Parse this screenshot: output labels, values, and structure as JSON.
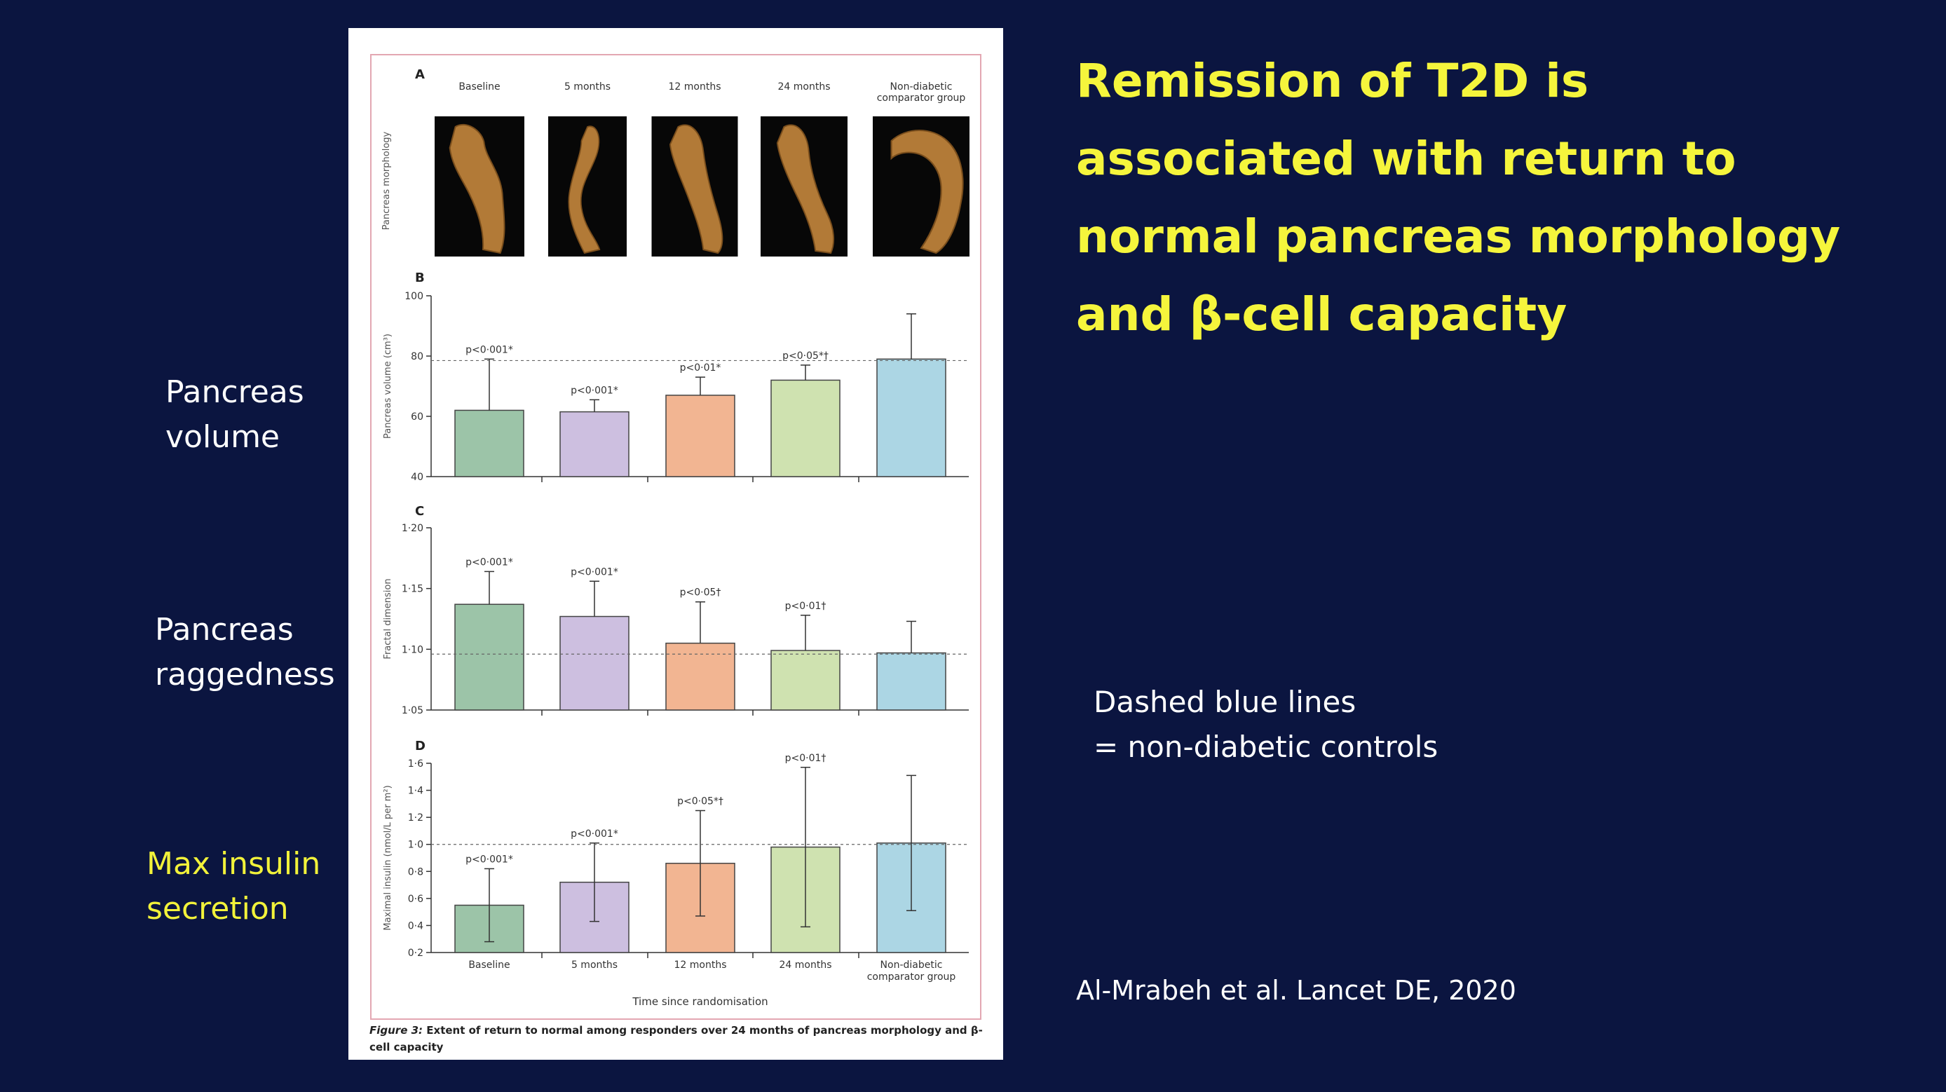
{
  "slide": {
    "title_lines": [
      "Remission of T2D is",
      "associated with return to",
      "normal pancreas morphology",
      "and β-cell capacity"
    ],
    "side_labels": {
      "volume": [
        "Pancreas",
        "volume"
      ],
      "raggedness": [
        "Pancreas",
        "raggedness"
      ],
      "insulin": [
        "Max insulin",
        "secretion"
      ]
    },
    "note_lines": [
      "Dashed blue lines",
      "= non-diabetic controls"
    ],
    "citation": "Al-Mrabeh et al.  Lancet DE, 2020",
    "colors": {
      "background": "#0b1540",
      "title": "#f5f53c",
      "insulin_label": "#f2f23a",
      "text": "#ffffff"
    }
  },
  "figure": {
    "caption_ref": "Figure 3:",
    "caption_text": "Extent of return to normal among responders over 24 months of pancreas morphology and β-cell capacity",
    "xlabel": "Time since randomisation",
    "bar_colors": [
      "#9cc4a8",
      "#cdbfe0",
      "#f2b592",
      "#cfe2b0",
      "#acd6e4"
    ]
  },
  "chart_data": [
    {
      "panel": "A",
      "type": "image-row",
      "ylabel": "Pancreas morphology",
      "categories": [
        "Baseline",
        "5 months",
        "12 months",
        "24 months",
        "Non-diabetic comparator group"
      ],
      "category_lines": [
        [
          "Baseline"
        ],
        [
          "5 months"
        ],
        [
          "12 months"
        ],
        [
          "24 months"
        ],
        [
          "Non-diabetic",
          "comparator group"
        ]
      ]
    },
    {
      "panel": "B",
      "type": "bar",
      "ylabel": "Pancreas volume (cm³)",
      "categories": [
        "Baseline",
        "5 months",
        "12 months",
        "24 months",
        "Non-diabetic comparator group"
      ],
      "values": [
        62,
        61.5,
        67,
        72,
        79
      ],
      "errors": [
        17,
        4,
        6,
        5,
        15
      ],
      "annotations": [
        "p<0·001*",
        "p<0·001*",
        "p<0·01*",
        "p<0·05*†",
        ""
      ],
      "ylim": [
        40,
        100
      ],
      "yticks": [
        40,
        60,
        80,
        100
      ],
      "ytick_labels": [
        "40",
        "60",
        "80",
        "100"
      ],
      "reference": 78.5
    },
    {
      "panel": "C",
      "type": "bar",
      "ylabel": "Fractal dimension",
      "categories": [
        "Baseline",
        "5 months",
        "12 months",
        "24 months",
        "Non-diabetic comparator group"
      ],
      "values": [
        1.137,
        1.127,
        1.105,
        1.099,
        1.097
      ],
      "errors": [
        0.027,
        0.029,
        0.034,
        0.029,
        0.026
      ],
      "annotations": [
        "p<0·001*",
        "p<0·001*",
        "p<0·05†",
        "p<0·01†",
        ""
      ],
      "ylim": [
        1.05,
        1.2
      ],
      "yticks": [
        1.05,
        1.1,
        1.15,
        1.2
      ],
      "ytick_labels": [
        "1·05",
        "1·10",
        "1·15",
        "1·20"
      ],
      "reference": 1.096
    },
    {
      "panel": "D",
      "type": "bar",
      "ylabel": "Maximal insulin (nmol/L per m²)",
      "categories": [
        "Baseline",
        "5 months",
        "12 months",
        "24 months",
        "Non-diabetic comparator group"
      ],
      "category_lines": [
        [
          "Baseline"
        ],
        [
          "5 months"
        ],
        [
          "12 months"
        ],
        [
          "24 months"
        ],
        [
          "Non-diabetic",
          "comparator group"
        ]
      ],
      "values": [
        0.55,
        0.72,
        0.86,
        0.98,
        1.01
      ],
      "errors": [
        0.27,
        0.29,
        0.39,
        0.59,
        0.5
      ],
      "annotations": [
        "p<0·001*",
        "p<0·001*",
        "p<0·05*†",
        "p<0·01†",
        ""
      ],
      "ylim": [
        0.2,
        1.6
      ],
      "yticks": [
        0.2,
        0.4,
        0.6,
        0.8,
        1.0,
        1.2,
        1.4,
        1.6
      ],
      "ytick_labels": [
        "0·2",
        "0·4",
        "0·6",
        "0·8",
        "1·0",
        "1·2",
        "1·4",
        "1·6"
      ],
      "reference": 1.0
    }
  ]
}
